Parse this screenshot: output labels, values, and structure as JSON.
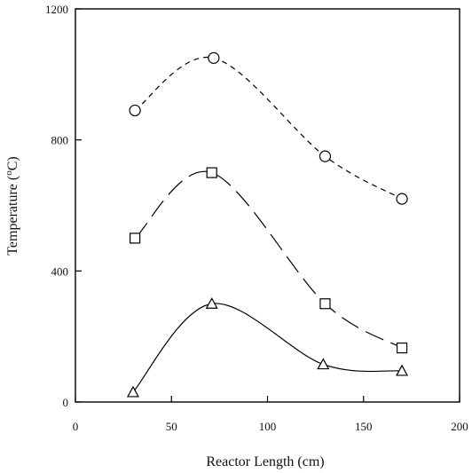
{
  "chart_data": {
    "type": "line",
    "xlabel": "Reactor Length (cm)",
    "ylabel_main": "Temperature (",
    "ylabel_sup": "o",
    "ylabel_end": "C)",
    "xlim": [
      0,
      200
    ],
    "ylim": [
      0,
      1200
    ],
    "xticks": [
      0,
      50,
      100,
      150,
      200
    ],
    "yticks": [
      0,
      400,
      800,
      1200
    ],
    "grid": false,
    "series": [
      {
        "marker": "circle",
        "line_style": "dashed-short",
        "x": [
          31,
          72,
          130,
          170
        ],
        "y": [
          890,
          1050,
          750,
          620
        ]
      },
      {
        "marker": "square",
        "line_style": "dashed-long",
        "x": [
          31,
          71,
          130,
          170
        ],
        "y": [
          500,
          700,
          300,
          165
        ]
      },
      {
        "marker": "triangle",
        "line_style": "solid",
        "x": [
          30,
          71,
          129,
          170
        ],
        "y": [
          30,
          300,
          115,
          95
        ]
      }
    ]
  }
}
